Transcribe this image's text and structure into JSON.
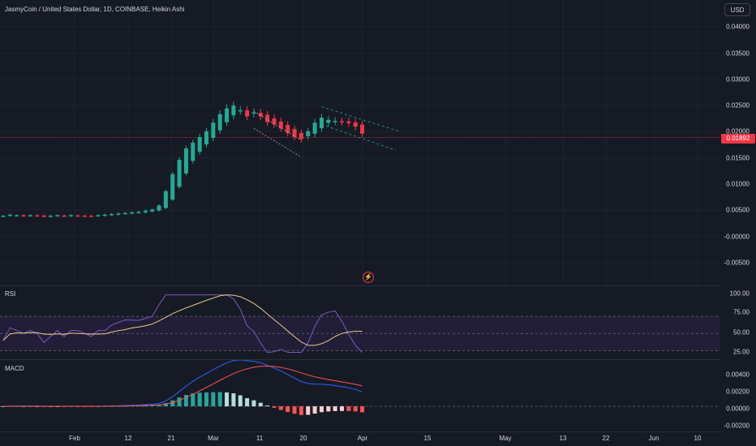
{
  "header": {
    "title": "JasmyCoin / United States Dollar, 1D, COINBASE, Heikin Ashi",
    "currency_button": "USD"
  },
  "price_axis": {
    "labels": [
      "0.04000",
      "0.03500",
      "0.03000",
      "0.02500",
      "0.02000",
      "0.01500",
      "0.01000",
      "0.00500",
      "-0.00000",
      "-0.00500"
    ],
    "current_price": "0.01892"
  },
  "rsi_pane": {
    "title": "RSI",
    "labels": [
      "100.00",
      "75.00",
      "50.00",
      "25.00"
    ]
  },
  "macd_pane": {
    "title": "MACD",
    "labels": [
      "0.00400",
      "0.00200",
      "0.00000",
      "-0.00200"
    ]
  },
  "time_axis": {
    "labels": [
      "Feb",
      "12",
      "21",
      "Mar",
      "11",
      "20",
      "Apr",
      "15",
      "May",
      "13",
      "22",
      "Jun",
      "10"
    ]
  },
  "colors": {
    "background": "#161a25",
    "up": "#22ab94",
    "down": "#f23645",
    "grid": "#1f2330",
    "rsi_line": "#7e57c2",
    "rsi_ma": "#e6c98a",
    "macd_line": "#2962ff",
    "signal_line": "#ff5252"
  },
  "icons": {
    "bolt": "lightning-icon"
  },
  "chart_data": {
    "type": "candlestick",
    "series": [
      {
        "name": "JasmyCoin",
        "values": [
          0.0052,
          0.0054,
          0.0053,
          0.0052,
          0.0053,
          0.0052,
          0.0051,
          0.0052,
          0.0053,
          0.0052,
          0.0053,
          0.0052,
          0.0052,
          0.0052,
          0.0053,
          0.0054,
          0.0055,
          0.0056,
          0.0057,
          0.0058,
          0.0059,
          0.0061,
          0.0063,
          0.007,
          0.0095,
          0.0125,
          0.015,
          0.017,
          0.018,
          0.019,
          0.02,
          0.0215,
          0.023,
          0.024,
          0.0245,
          0.0237,
          0.0226,
          0.0233,
          0.0226,
          0.0216,
          0.0212,
          0.0205,
          0.0197,
          0.019,
          0.0186,
          0.02,
          0.0215,
          0.0224,
          0.022,
          0.0218,
          0.0217,
          0.0214,
          0.0208,
          0.0196
        ]
      }
    ],
    "ylim": [
      -0.007,
      0.043
    ]
  }
}
